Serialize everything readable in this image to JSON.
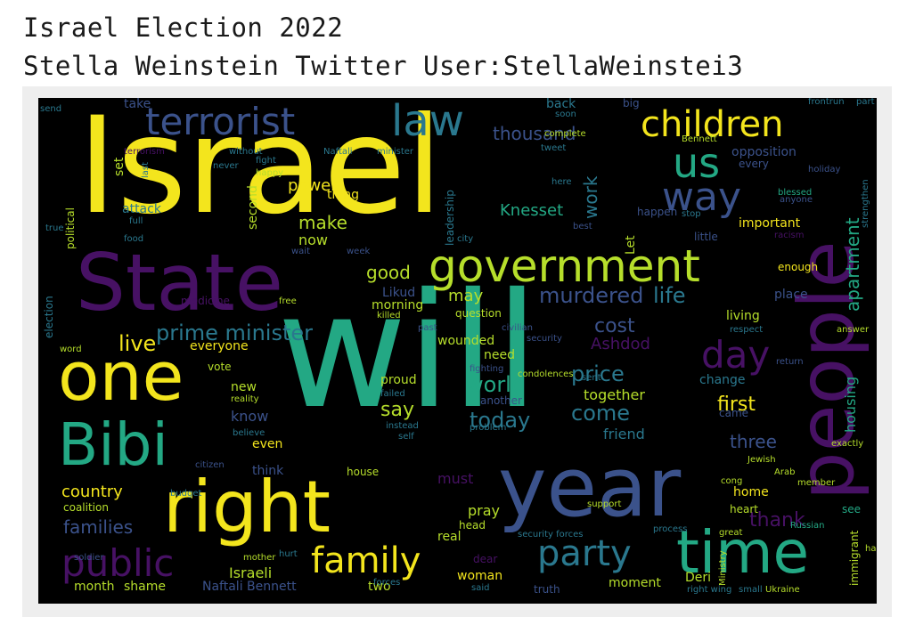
{
  "header": {
    "line1": "Israel Election 2022",
    "line2": "Stella Weinstein Twitter User:StellaWeinstei3"
  },
  "palette": {
    "yellow": "#f3e51d",
    "lime": "#b6de2b",
    "teal": "#23a884",
    "blue": "#3b528b",
    "purple": "#471164",
    "cyan": "#2a788e"
  },
  "cloud": {
    "words": [
      {
        "text": "Israel"
      },
      {
        "text": "will"
      },
      {
        "text": "State"
      },
      {
        "text": "people"
      },
      {
        "text": "year"
      },
      {
        "text": "right"
      },
      {
        "text": "one"
      },
      {
        "text": "Bibi"
      },
      {
        "text": "time"
      },
      {
        "text": "government"
      },
      {
        "text": "terrorist"
      },
      {
        "text": "law"
      },
      {
        "text": "children"
      },
      {
        "text": "us"
      },
      {
        "text": "way"
      },
      {
        "text": "public"
      },
      {
        "text": "family"
      },
      {
        "text": "party"
      },
      {
        "text": "day"
      },
      {
        "text": "prime minister"
      },
      {
        "text": "murdered"
      },
      {
        "text": "life"
      },
      {
        "text": "thousand"
      },
      {
        "text": "Knesset"
      },
      {
        "text": "apartment"
      },
      {
        "text": "world"
      },
      {
        "text": "price"
      },
      {
        "text": "today"
      },
      {
        "text": "come"
      },
      {
        "text": "say"
      },
      {
        "text": "live"
      },
      {
        "text": "good"
      },
      {
        "text": "power"
      },
      {
        "text": "make"
      },
      {
        "text": "work"
      },
      {
        "text": "cost"
      },
      {
        "text": "Ashdod"
      },
      {
        "text": "first"
      },
      {
        "text": "three"
      },
      {
        "text": "thank"
      },
      {
        "text": "housing"
      },
      {
        "text": "country"
      },
      {
        "text": "families"
      },
      {
        "text": "Israeli"
      },
      {
        "text": "Naftali Bennett"
      },
      {
        "text": "two"
      },
      {
        "text": "month"
      },
      {
        "text": "shame"
      },
      {
        "text": "woman"
      },
      {
        "text": "pray"
      },
      {
        "text": "must"
      },
      {
        "text": "real"
      },
      {
        "text": "together"
      },
      {
        "text": "friend"
      },
      {
        "text": "may"
      },
      {
        "text": "now"
      },
      {
        "text": "know"
      },
      {
        "text": "new"
      },
      {
        "text": "even"
      },
      {
        "text": "think"
      },
      {
        "text": "house"
      },
      {
        "text": "head"
      },
      {
        "text": "dear"
      },
      {
        "text": "truth"
      },
      {
        "text": "moment"
      },
      {
        "text": "Deri"
      },
      {
        "text": "important"
      },
      {
        "text": "enough"
      },
      {
        "text": "living"
      },
      {
        "text": "place"
      },
      {
        "text": "opposition"
      },
      {
        "text": "every"
      },
      {
        "text": "little"
      },
      {
        "text": "Let"
      },
      {
        "text": "happen"
      },
      {
        "text": "back"
      },
      {
        "text": "take"
      },
      {
        "text": "attack"
      },
      {
        "text": "second"
      },
      {
        "text": "set"
      },
      {
        "text": "political"
      },
      {
        "text": "election"
      },
      {
        "text": "medicine"
      },
      {
        "text": "morning"
      },
      {
        "text": "Likud"
      },
      {
        "text": "question"
      },
      {
        "text": "wounded"
      },
      {
        "text": "need"
      },
      {
        "text": "proud"
      },
      {
        "text": "another"
      },
      {
        "text": "everyone"
      },
      {
        "text": "vote"
      },
      {
        "text": "coalition"
      },
      {
        "text": "leadership"
      },
      {
        "text": "thing"
      },
      {
        "text": "change"
      },
      {
        "text": "home"
      },
      {
        "text": "heart"
      },
      {
        "text": "see"
      },
      {
        "text": "immigrant"
      },
      {
        "text": "came"
      },
      {
        "text": "fight"
      },
      {
        "text": "blessed"
      },
      {
        "text": "security"
      },
      {
        "text": "citizen"
      },
      {
        "text": "support"
      },
      {
        "text": "Russian"
      },
      {
        "text": "Jewish"
      },
      {
        "text": "Arab"
      },
      {
        "text": "exactly"
      },
      {
        "text": "answer"
      },
      {
        "text": "respect"
      },
      {
        "text": "city"
      },
      {
        "text": "free"
      },
      {
        "text": "word"
      },
      {
        "text": "big"
      },
      {
        "text": "complete"
      },
      {
        "text": "killed"
      },
      {
        "text": "security forces"
      },
      {
        "text": "right wing"
      },
      {
        "text": "small"
      },
      {
        "text": "Ukraine"
      },
      {
        "text": "frontrun"
      },
      {
        "text": "part"
      },
      {
        "text": "Bennett"
      },
      {
        "text": "stop"
      },
      {
        "text": "Ministry"
      },
      {
        "text": "member"
      },
      {
        "text": "past"
      },
      {
        "text": "civilian"
      },
      {
        "text": "budget"
      },
      {
        "text": "fighting"
      },
      {
        "text": "condolences"
      },
      {
        "text": "problem"
      },
      {
        "text": "soldier"
      },
      {
        "text": "failed"
      },
      {
        "text": "mother"
      },
      {
        "text": "reality"
      },
      {
        "text": "believe"
      },
      {
        "text": "instead"
      },
      {
        "text": "self"
      },
      {
        "text": "wait"
      },
      {
        "text": "week"
      },
      {
        "text": "best"
      },
      {
        "text": "true"
      },
      {
        "text": "tweet"
      },
      {
        "text": "soon"
      },
      {
        "text": "here"
      },
      {
        "text": "strengthen"
      },
      {
        "text": "anyone"
      },
      {
        "text": "holiday"
      },
      {
        "text": "racism"
      },
      {
        "text": "cong"
      },
      {
        "text": "great"
      },
      {
        "text": "process"
      },
      {
        "text": "half"
      },
      {
        "text": "forces"
      },
      {
        "text": "sent"
      },
      {
        "text": "said"
      },
      {
        "text": "minister"
      },
      {
        "text": "without"
      },
      {
        "text": "terrorism"
      },
      {
        "text": "Naftali"
      },
      {
        "text": "return"
      },
      {
        "text": "hurt"
      },
      {
        "text": "food"
      },
      {
        "text": "full"
      },
      {
        "text": "send"
      },
      {
        "text": "last"
      },
      {
        "text": "happy"
      },
      {
        "text": "never"
      }
    ]
  }
}
